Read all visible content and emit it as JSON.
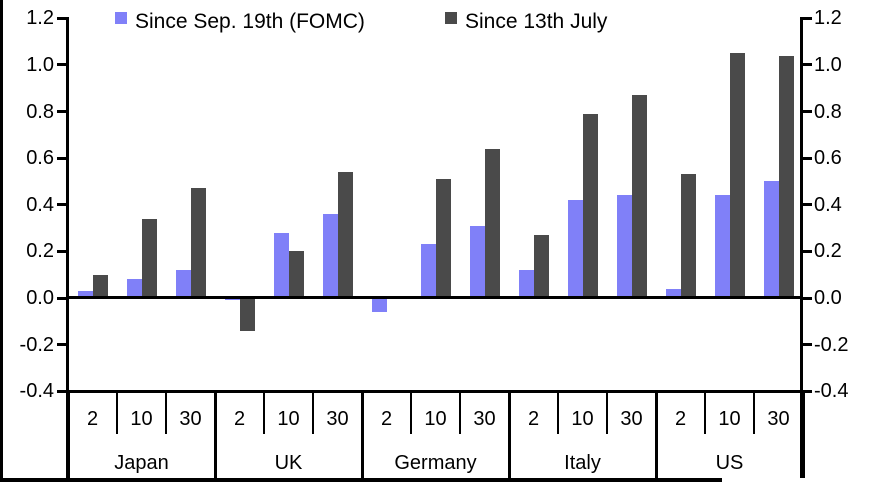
{
  "chart_data": {
    "type": "bar",
    "title": "",
    "group_labels": [
      "Japan",
      "UK",
      "Germany",
      "Italy",
      "US"
    ],
    "tenor_labels": [
      "2",
      "10",
      "30"
    ],
    "categories": [
      "Japan-2",
      "Japan-10",
      "Japan-30",
      "UK-2",
      "UK-10",
      "UK-30",
      "Germany-2",
      "Germany-10",
      "Germany-30",
      "Italy-2",
      "Italy-10",
      "Italy-30",
      "US-2",
      "US-10",
      "US-30"
    ],
    "series": [
      {
        "name": "Since Sep. 19th (FOMC)",
        "color": "#8080F8",
        "values": [
          0.03,
          0.08,
          0.12,
          -0.01,
          0.28,
          0.36,
          -0.06,
          0.23,
          0.31,
          0.12,
          0.42,
          0.44,
          0.04,
          0.44,
          0.5
        ]
      },
      {
        "name": "Since 13th July",
        "color": "#4A4A4A",
        "values": [
          0.1,
          0.34,
          0.47,
          -0.14,
          0.2,
          0.54,
          0.0,
          0.51,
          0.64,
          0.27,
          0.79,
          0.87,
          0.53,
          1.05,
          1.04
        ]
      }
    ],
    "y_axis": {
      "min": -0.4,
      "max": 1.2,
      "step": 0.2,
      "tick_labels": [
        "1.2",
        "1.0",
        "0.8",
        "0.6",
        "0.4",
        "0.2",
        "0.0",
        "-0.2",
        "-0.4"
      ],
      "sides": "both"
    },
    "grid": false,
    "legend_position": "top"
  }
}
